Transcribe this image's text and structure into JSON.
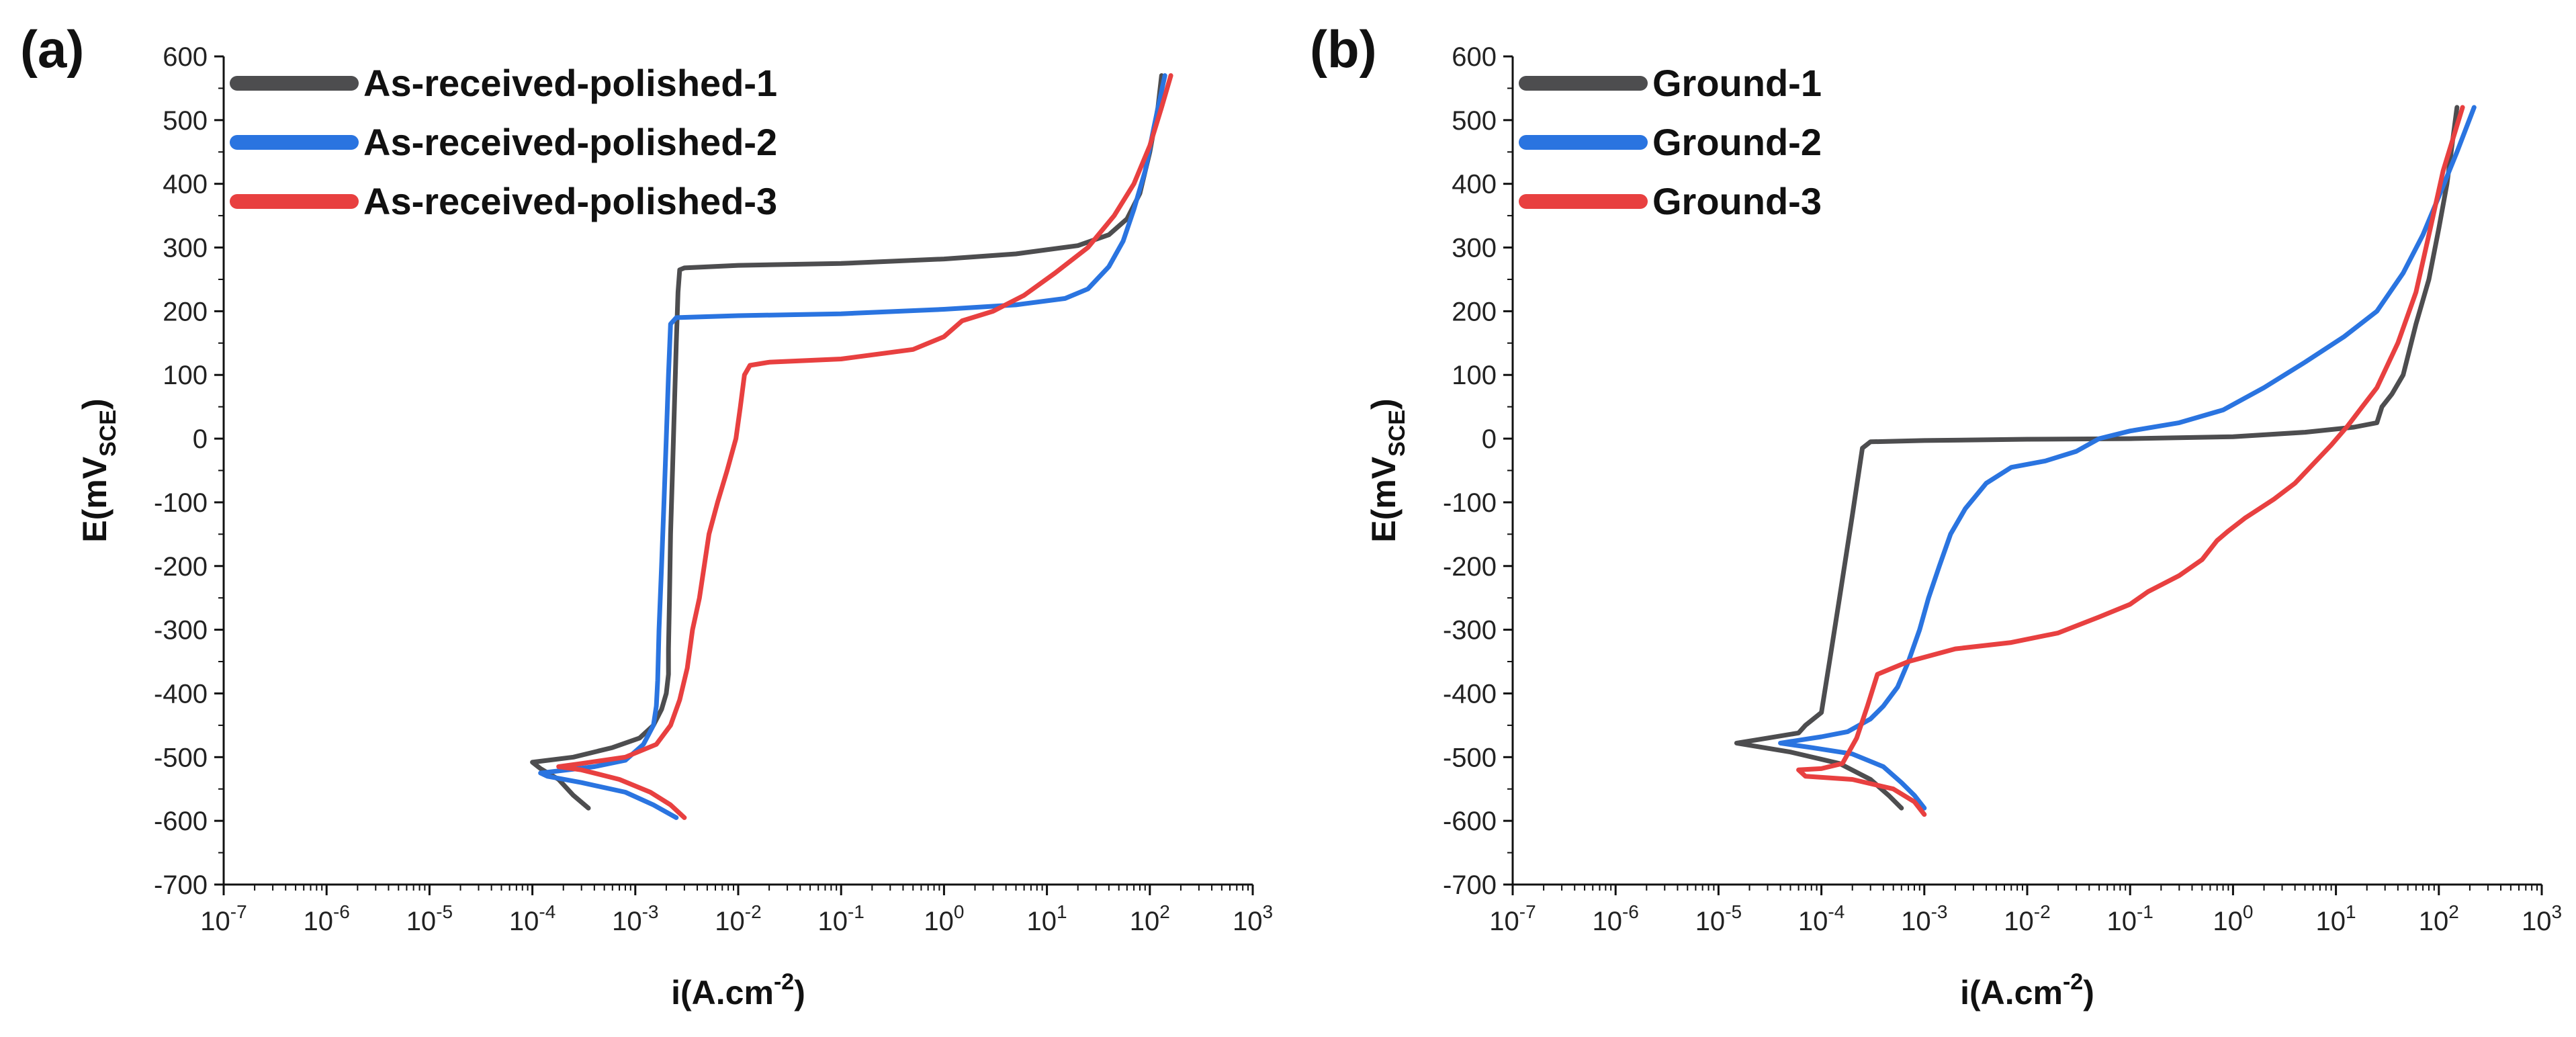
{
  "chart_data": [
    {
      "panel_label": "(a)",
      "type": "line",
      "xscale": "log",
      "xlabel": "i(A.cm",
      "xlabel_sup": "-2",
      "xlabel_close": ")",
      "ylabel": "E(mV",
      "ylabel_sub": "SCE",
      "ylabel_close": ")",
      "xlim_exp": [
        -7,
        3
      ],
      "ylim": [
        -700,
        600
      ],
      "x_tick_exps": [
        -7,
        -6,
        -5,
        -4,
        -3,
        -2,
        -1,
        0,
        1,
        2,
        3
      ],
      "y_ticks": [
        600,
        500,
        400,
        300,
        200,
        100,
        0,
        -100,
        -200,
        -300,
        -400,
        -500,
        -600,
        -700
      ],
      "legend_position": "top-left",
      "series": [
        {
          "name": "As-received-polished-1",
          "color": "#4d4d4f",
          "points": [
            [
              0.00035,
              -580
            ],
            [
              0.00025,
              -560
            ],
            [
              0.00018,
              -535
            ],
            [
              0.00012,
              -518
            ],
            [
              0.0001,
              -508
            ],
            [
              0.00025,
              -500
            ],
            [
              0.0006,
              -485
            ],
            [
              0.0011,
              -470
            ],
            [
              0.0015,
              -450
            ],
            [
              0.0018,
              -425
            ],
            [
              0.002,
              -400
            ],
            [
              0.0021,
              -370
            ],
            [
              0.0021,
              -330
            ],
            [
              0.00215,
              -250
            ],
            [
              0.0022,
              -150
            ],
            [
              0.0023,
              -50
            ],
            [
              0.0024,
              50
            ],
            [
              0.0025,
              150
            ],
            [
              0.0026,
              230
            ],
            [
              0.0027,
              265
            ],
            [
              0.003,
              268
            ],
            [
              0.01,
              272
            ],
            [
              0.1,
              275
            ],
            [
              1,
              282
            ],
            [
              5,
              290
            ],
            [
              20,
              303
            ],
            [
              40,
              320
            ],
            [
              60,
              345
            ],
            [
              80,
              385
            ],
            [
              100,
              450
            ],
            [
              120,
              520
            ],
            [
              130,
              570
            ]
          ]
        },
        {
          "name": "As-received-polished-2",
          "color": "#2a74e0",
          "points": [
            [
              0.0025,
              -595
            ],
            [
              0.0015,
              -575
            ],
            [
              0.0008,
              -555
            ],
            [
              0.0003,
              -540
            ],
            [
              0.00014,
              -530
            ],
            [
              0.00012,
              -525
            ],
            [
              0.0004,
              -515
            ],
            [
              0.0008,
              -505
            ],
            [
              0.0012,
              -480
            ],
            [
              0.0015,
              -450
            ],
            [
              0.0016,
              -420
            ],
            [
              0.00165,
              -380
            ],
            [
              0.0017,
              -300
            ],
            [
              0.0018,
              -200
            ],
            [
              0.0019,
              -100
            ],
            [
              0.002,
              0
            ],
            [
              0.0021,
              100
            ],
            [
              0.0022,
              180
            ],
            [
              0.0025,
              190
            ],
            [
              0.01,
              193
            ],
            [
              0.1,
              196
            ],
            [
              1,
              203
            ],
            [
              5,
              210
            ],
            [
              15,
              220
            ],
            [
              25,
              235
            ],
            [
              40,
              270
            ],
            [
              55,
              310
            ],
            [
              70,
              360
            ],
            [
              90,
              420
            ],
            [
              110,
              490
            ],
            [
              140,
              570
            ]
          ]
        },
        {
          "name": "As-received-polished-3",
          "color": "#e84040",
          "points": [
            [
              0.003,
              -595
            ],
            [
              0.0022,
              -575
            ],
            [
              0.0014,
              -555
            ],
            [
              0.0007,
              -535
            ],
            [
              0.0003,
              -520
            ],
            [
              0.00018,
              -515
            ],
            [
              0.0003,
              -510
            ],
            [
              0.0008,
              -500
            ],
            [
              0.0016,
              -480
            ],
            [
              0.0022,
              -450
            ],
            [
              0.0027,
              -410
            ],
            [
              0.0032,
              -360
            ],
            [
              0.0036,
              -300
            ],
            [
              0.0042,
              -250
            ],
            [
              0.0052,
              -150
            ],
            [
              0.0063,
              -100
            ],
            [
              0.0078,
              -50
            ],
            [
              0.0095,
              0
            ],
            [
              0.0105,
              50
            ],
            [
              0.0115,
              100
            ],
            [
              0.013,
              115
            ],
            [
              0.02,
              120
            ],
            [
              0.1,
              125
            ],
            [
              0.5,
              140
            ],
            [
              1,
              160
            ],
            [
              1.5,
              185
            ],
            [
              3,
              200
            ],
            [
              6,
              225
            ],
            [
              12,
              260
            ],
            [
              25,
              300
            ],
            [
              45,
              350
            ],
            [
              70,
              400
            ],
            [
              100,
              460
            ],
            [
              130,
              520
            ],
            [
              160,
              570
            ]
          ]
        }
      ]
    },
    {
      "panel_label": "(b)",
      "type": "line",
      "xscale": "log",
      "xlabel": "i(A.cm",
      "xlabel_sup": "-2",
      "xlabel_close": ")",
      "ylabel": "E(mV",
      "ylabel_sub": "SCE",
      "ylabel_close": ")",
      "xlim_exp": [
        -7,
        3
      ],
      "ylim": [
        -700,
        600
      ],
      "x_tick_exps": [
        -7,
        -6,
        -5,
        -4,
        -3,
        -2,
        -1,
        0,
        1,
        2,
        3
      ],
      "y_ticks": [
        600,
        500,
        400,
        300,
        200,
        100,
        0,
        -100,
        -200,
        -300,
        -400,
        -500,
        -600,
        -700
      ],
      "legend_position": "top-left",
      "series": [
        {
          "name": "Ground-1",
          "color": "#4d4d4f",
          "points": [
            [
              0.0006,
              -580
            ],
            [
              0.00045,
              -560
            ],
            [
              0.0003,
              -535
            ],
            [
              0.00015,
              -510
            ],
            [
              5e-05,
              -492
            ],
            [
              1.5e-05,
              -478
            ],
            [
              3e-05,
              -470
            ],
            [
              6e-05,
              -462
            ],
            [
              7e-05,
              -450
            ],
            [
              0.0001,
              -430
            ],
            [
              0.00012,
              -350
            ],
            [
              0.00015,
              -250
            ],
            [
              0.0002,
              -120
            ],
            [
              0.00025,
              -15
            ],
            [
              0.0003,
              -5
            ],
            [
              0.001,
              -3
            ],
            [
              0.01,
              -1
            ],
            [
              0.1,
              0
            ],
            [
              1,
              3
            ],
            [
              5,
              10
            ],
            [
              15,
              18
            ],
            [
              25,
              25
            ],
            [
              28,
              50
            ],
            [
              35,
              70
            ],
            [
              45,
              100
            ],
            [
              60,
              180
            ],
            [
              80,
              250
            ],
            [
              100,
              330
            ],
            [
              120,
              400
            ],
            [
              150,
              520
            ]
          ]
        },
        {
          "name": "Ground-2",
          "color": "#2a74e0",
          "points": [
            [
              0.001,
              -580
            ],
            [
              0.0008,
              -560
            ],
            [
              0.0006,
              -540
            ],
            [
              0.0004,
              -515
            ],
            [
              0.0002,
              -495
            ],
            [
              8e-05,
              -485
            ],
            [
              4e-05,
              -478
            ],
            [
              0.0001,
              -468
            ],
            [
              0.00018,
              -460
            ],
            [
              0.0003,
              -440
            ],
            [
              0.0004,
              -420
            ],
            [
              0.00055,
              -390
            ],
            [
              0.0007,
              -350
            ],
            [
              0.0009,
              -300
            ],
            [
              0.0011,
              -250
            ],
            [
              0.0014,
              -200
            ],
            [
              0.0018,
              -150
            ],
            [
              0.0025,
              -110
            ],
            [
              0.004,
              -70
            ],
            [
              0.007,
              -45
            ],
            [
              0.015,
              -35
            ],
            [
              0.03,
              -20
            ],
            [
              0.05,
              0
            ],
            [
              0.1,
              12
            ],
            [
              0.3,
              25
            ],
            [
              0.8,
              45
            ],
            [
              2,
              80
            ],
            [
              5,
              120
            ],
            [
              12,
              160
            ],
            [
              25,
              200
            ],
            [
              45,
              260
            ],
            [
              70,
              320
            ],
            [
              100,
              380
            ],
            [
              150,
              450
            ],
            [
              220,
              520
            ]
          ]
        },
        {
          "name": "Ground-3",
          "color": "#e84040",
          "points": [
            [
              0.001,
              -590
            ],
            [
              0.0008,
              -570
            ],
            [
              0.0005,
              -550
            ],
            [
              0.0002,
              -535
            ],
            [
              7e-05,
              -530
            ],
            [
              6e-05,
              -520
            ],
            [
              0.0001,
              -518
            ],
            [
              0.00016,
              -510
            ],
            [
              0.00022,
              -470
            ],
            [
              0.00028,
              -420
            ],
            [
              0.00035,
              -370
            ],
            [
              0.0007,
              -350
            ],
            [
              0.002,
              -330
            ],
            [
              0.007,
              -320
            ],
            [
              0.02,
              -305
            ],
            [
              0.05,
              -280
            ],
            [
              0.1,
              -260
            ],
            [
              0.15,
              -240
            ],
            [
              0.3,
              -215
            ],
            [
              0.5,
              -190
            ],
            [
              0.7,
              -160
            ],
            [
              0.9,
              -145
            ],
            [
              1.3,
              -125
            ],
            [
              2.5,
              -95
            ],
            [
              4,
              -70
            ],
            [
              6,
              -40
            ],
            [
              9,
              -10
            ],
            [
              13,
              20
            ],
            [
              18,
              50
            ],
            [
              25,
              80
            ],
            [
              40,
              150
            ],
            [
              60,
              230
            ],
            [
              80,
              320
            ],
            [
              110,
              420
            ],
            [
              170,
              520
            ]
          ]
        }
      ]
    }
  ]
}
